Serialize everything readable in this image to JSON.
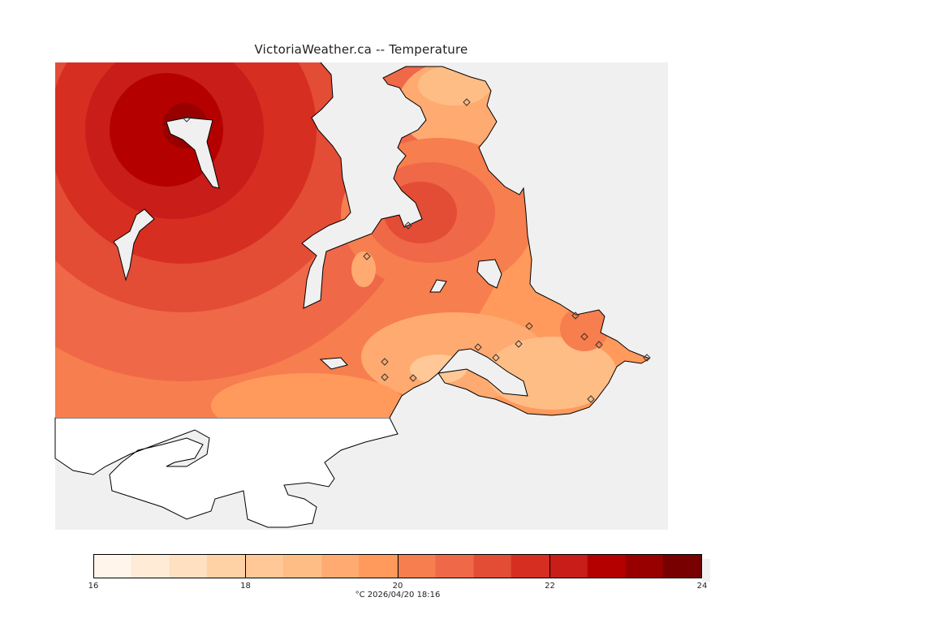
{
  "title": "VictoriaWeather.ca  --  Temperature",
  "legend": {
    "min": 16,
    "max": 24,
    "step": 0.5,
    "tick_labels": [
      "16",
      "18",
      "20",
      "22",
      "24"
    ],
    "tick_values": [
      16,
      18,
      20,
      22,
      24
    ],
    "colors": [
      "#fff5ea",
      "#ffebd6",
      "#ffe0c0",
      "#ffd2a6",
      "#ffc896",
      "#ffbd86",
      "#ffaa70",
      "#ff9a5c",
      "#f77e4e",
      "#ef6848",
      "#e34c35",
      "#d72e22",
      "#c81d19",
      "#b50000",
      "#980000",
      "#780000"
    ],
    "caption": "°C  2026/04/20 18:16"
  },
  "map": {
    "water_color": "#f0f0f0",
    "land_nodata_color": "#ffffff",
    "coast_color": "#000000",
    "station_marker": "diamond-icon"
  }
}
